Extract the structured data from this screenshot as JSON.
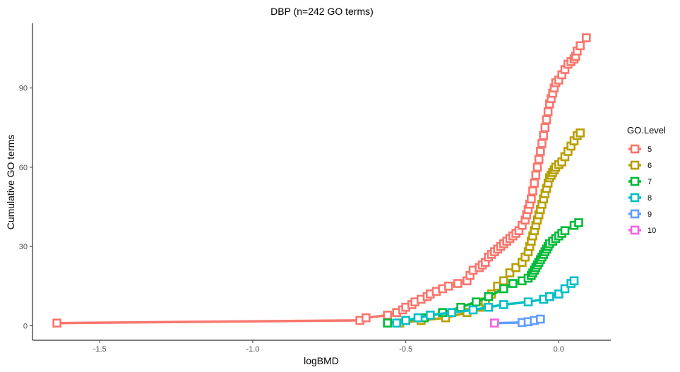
{
  "chart_data": {
    "type": "line",
    "title": "DBP (n=242 GO terms)",
    "xlabel": "logBMD",
    "ylabel": "Cumulative GO terms",
    "xlim": [
      -1.72,
      0.17
    ],
    "ylim": [
      -5.5,
      114.5
    ],
    "x_ticks": [
      -1.5,
      -1.0,
      -0.5,
      0.0
    ],
    "x_tick_labels": [
      "-1.5",
      "-1.0",
      "-0.5",
      "0.0"
    ],
    "y_ticks": [
      0,
      30,
      60,
      90
    ],
    "y_tick_labels": [
      "0",
      "30",
      "60",
      "90"
    ],
    "grid": false,
    "legend": {
      "title": "GO.Level",
      "position": "right"
    },
    "series": [
      {
        "name": "5",
        "color": "#F8766D",
        "x": [
          -1.64,
          -0.65,
          -0.63,
          -0.56,
          -0.53,
          -0.51,
          -0.5,
          -0.48,
          -0.47,
          -0.45,
          -0.43,
          -0.42,
          -0.4,
          -0.38,
          -0.36,
          -0.33,
          -0.3,
          -0.29,
          -0.28,
          -0.26,
          -0.25,
          -0.24,
          -0.23,
          -0.22,
          -0.21,
          -0.2,
          -0.19,
          -0.18,
          -0.17,
          -0.16,
          -0.15,
          -0.14,
          -0.13,
          -0.12,
          -0.11,
          -0.105,
          -0.1,
          -0.095,
          -0.09,
          -0.085,
          -0.08,
          -0.075,
          -0.07,
          -0.065,
          -0.06,
          -0.055,
          -0.05,
          -0.045,
          -0.04,
          -0.035,
          -0.03,
          -0.025,
          -0.02,
          -0.015,
          -0.01,
          0.0,
          0.01,
          0.02,
          0.03,
          0.04,
          0.05,
          0.055,
          0.06,
          0.07,
          0.09
        ],
        "y": [
          1,
          2,
          3,
          4,
          5,
          6,
          7,
          8,
          9,
          10,
          11,
          12,
          13,
          14,
          15,
          16,
          17,
          19,
          21,
          22,
          23,
          24,
          26,
          27,
          28,
          29,
          30,
          31,
          32,
          33,
          34,
          35,
          36,
          38,
          40,
          42,
          44,
          46,
          48,
          51,
          54,
          57,
          60,
          63,
          66,
          69,
          72,
          75,
          78,
          81,
          84,
          86,
          88,
          90,
          92,
          93,
          95,
          97,
          99,
          100,
          101,
          102,
          104,
          106,
          109
        ]
      },
      {
        "name": "6",
        "color": "#B79F00",
        "x": [
          -0.52,
          -0.45,
          -0.37,
          -0.3,
          -0.26,
          -0.24,
          -0.22,
          -0.2,
          -0.18,
          -0.16,
          -0.14,
          -0.12,
          -0.11,
          -0.1,
          -0.095,
          -0.09,
          -0.085,
          -0.08,
          -0.075,
          -0.07,
          -0.065,
          -0.06,
          -0.055,
          -0.05,
          -0.045,
          -0.04,
          -0.035,
          -0.03,
          -0.025,
          -0.02,
          -0.015,
          -0.01,
          0.0,
          0.01,
          0.02,
          0.03,
          0.04,
          0.05,
          0.06,
          0.07
        ],
        "y": [
          1,
          2,
          3,
          5,
          7,
          9,
          12,
          15,
          17,
          20,
          22,
          24,
          26,
          28,
          30,
          32,
          34,
          36,
          38,
          40,
          42,
          44,
          46,
          48,
          50,
          52,
          54,
          56,
          57,
          58,
          59,
          60,
          61,
          62,
          64,
          66,
          68,
          70,
          72,
          73
        ]
      },
      {
        "name": "7",
        "color": "#00BA38",
        "x": [
          -0.56,
          -0.5,
          -0.44,
          -0.38,
          -0.32,
          -0.27,
          -0.23,
          -0.18,
          -0.15,
          -0.12,
          -0.1,
          -0.09,
          -0.085,
          -0.08,
          -0.075,
          -0.07,
          -0.065,
          -0.06,
          -0.055,
          -0.05,
          -0.045,
          -0.04,
          -0.035,
          -0.03,
          -0.02,
          -0.01,
          0.0,
          0.01,
          0.02,
          0.05,
          0.065
        ],
        "y": [
          1,
          2,
          3,
          5,
          7,
          9,
          11,
          14,
          16,
          17,
          18,
          19,
          20,
          21,
          22,
          23,
          24,
          25,
          26,
          27,
          28,
          29,
          30,
          31,
          32,
          33,
          34,
          35,
          36,
          38,
          39
        ]
      },
      {
        "name": "8",
        "color": "#00BFC4",
        "x": [
          -0.53,
          -0.5,
          -0.46,
          -0.42,
          -0.35,
          -0.28,
          -0.23,
          -0.18,
          -0.1,
          -0.05,
          -0.03,
          0.0,
          0.02,
          0.04,
          0.05
        ],
        "y": [
          1,
          2,
          3,
          4,
          5,
          6,
          7,
          8,
          9,
          10,
          11,
          12,
          14,
          16,
          17
        ]
      },
      {
        "name": "9",
        "color": "#619CFF",
        "x": [
          -0.21,
          -0.12,
          -0.1,
          -0.08,
          -0.06
        ],
        "y": [
          1,
          1.2,
          1.5,
          2,
          2.5
        ]
      },
      {
        "name": "10",
        "color": "#F564E3",
        "x": [
          -0.21
        ],
        "y": [
          1
        ]
      }
    ]
  }
}
